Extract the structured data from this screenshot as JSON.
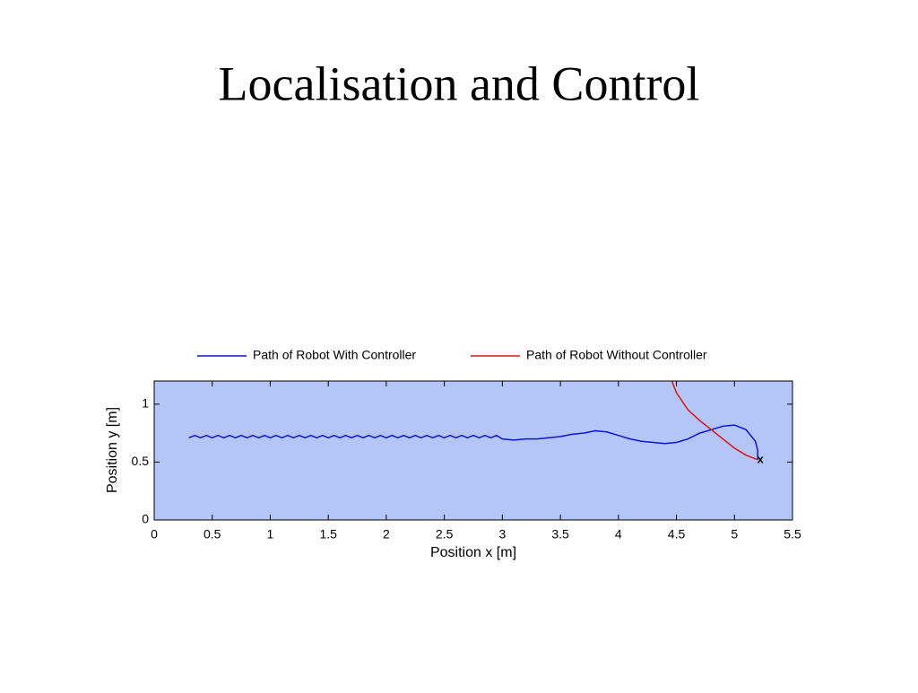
{
  "title": "Localisation and Control",
  "chart_data": {
    "type": "line",
    "xlabel": "Position x [m]",
    "ylabel": "Position y [m]",
    "xlim": [
      0,
      5.5
    ],
    "ylim": [
      0,
      1.2
    ],
    "xticks": [
      0,
      0.5,
      1,
      1.5,
      2,
      2.5,
      3,
      3.5,
      4,
      4.5,
      5,
      5.5
    ],
    "yticks": [
      0,
      0.5,
      1
    ],
    "grid": false,
    "legend": "top",
    "background": "#b3c6f7",
    "series": [
      {
        "name": "Path of Robot With Controller",
        "color": "#1010e0",
        "x": [
          0.3,
          0.35,
          0.4,
          0.45,
          0.5,
          0.55,
          0.6,
          0.65,
          0.7,
          0.75,
          0.8,
          0.85,
          0.9,
          0.95,
          1.0,
          1.05,
          1.1,
          1.15,
          1.2,
          1.25,
          1.3,
          1.35,
          1.4,
          1.45,
          1.5,
          1.55,
          1.6,
          1.65,
          1.7,
          1.75,
          1.8,
          1.85,
          1.9,
          1.95,
          2.0,
          2.05,
          2.1,
          2.15,
          2.2,
          2.25,
          2.3,
          2.35,
          2.4,
          2.45,
          2.5,
          2.55,
          2.6,
          2.65,
          2.7,
          2.75,
          2.8,
          2.85,
          2.9,
          2.95,
          3.0,
          3.1,
          3.2,
          3.3,
          3.4,
          3.5,
          3.6,
          3.7,
          3.8,
          3.9,
          4.0,
          4.1,
          4.2,
          4.3,
          4.4,
          4.5,
          4.6,
          4.7,
          4.8,
          4.9,
          5.0,
          5.1,
          5.18,
          5.2,
          5.2
        ],
        "values": [
          0.71,
          0.73,
          0.71,
          0.73,
          0.71,
          0.73,
          0.71,
          0.73,
          0.71,
          0.73,
          0.71,
          0.73,
          0.71,
          0.73,
          0.71,
          0.73,
          0.71,
          0.73,
          0.71,
          0.73,
          0.71,
          0.73,
          0.71,
          0.73,
          0.71,
          0.73,
          0.71,
          0.73,
          0.71,
          0.73,
          0.71,
          0.73,
          0.71,
          0.73,
          0.71,
          0.73,
          0.71,
          0.73,
          0.71,
          0.73,
          0.71,
          0.73,
          0.71,
          0.73,
          0.71,
          0.73,
          0.71,
          0.73,
          0.71,
          0.73,
          0.71,
          0.73,
          0.71,
          0.73,
          0.7,
          0.69,
          0.7,
          0.7,
          0.71,
          0.72,
          0.74,
          0.75,
          0.77,
          0.76,
          0.73,
          0.7,
          0.68,
          0.67,
          0.66,
          0.67,
          0.7,
          0.75,
          0.78,
          0.81,
          0.82,
          0.78,
          0.68,
          0.6,
          0.52
        ]
      },
      {
        "name": "Path of Robot Without Controller",
        "color": "#e01010",
        "x": [
          4.46,
          4.5,
          4.6,
          4.7,
          4.8,
          4.9,
          5.0,
          5.1,
          5.2
        ],
        "values": [
          1.2,
          1.1,
          0.95,
          0.86,
          0.78,
          0.7,
          0.62,
          0.56,
          0.52
        ]
      }
    ],
    "annotations": [
      {
        "text": "x",
        "x": 5.2,
        "y": 0.52
      }
    ]
  }
}
